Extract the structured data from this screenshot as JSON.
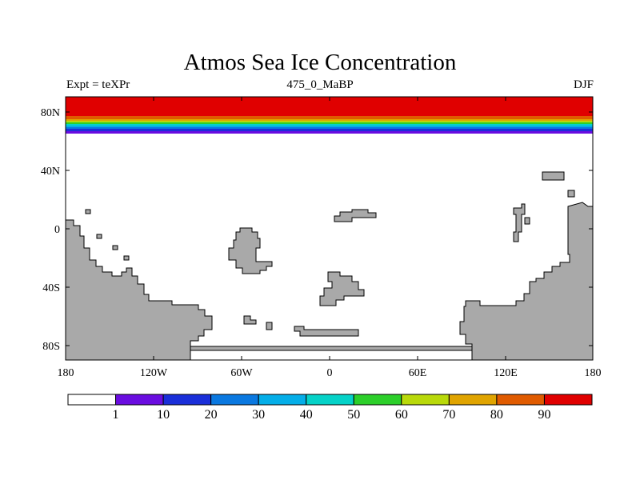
{
  "title": "Atmos Sea Ice Concentration",
  "subtitle_left": "Expt = teXPr",
  "subtitle_center": "475_0_MaBP",
  "subtitle_right": "DJF",
  "map": {
    "lon_range": [
      -180,
      180
    ],
    "lat_range": [
      -90,
      90
    ],
    "x_ticks": [
      "180",
      "120W",
      "60W",
      "0",
      "60E",
      "120E",
      "180"
    ],
    "y_ticks": [
      "80N",
      "40N",
      "0",
      "40S",
      "80S"
    ],
    "land_color": "#a9a9a9",
    "ocean_color": "#ffffff"
  },
  "chart_data": {
    "type": "heatmap",
    "variable": "sea ice concentration",
    "season": "DJF",
    "colorbar": {
      "levels": [
        1,
        10,
        20,
        30,
        40,
        50,
        60,
        70,
        80,
        90
      ],
      "labels": [
        "1",
        "10",
        "20",
        "30",
        "40",
        "50",
        "60",
        "70",
        "80",
        "90"
      ],
      "colors": [
        "#ffffff",
        "#6a0de0",
        "#1a2fd9",
        "#0a78e0",
        "#04aee8",
        "#05d2c8",
        "#2ccf2a",
        "#b9d90a",
        "#e0a400",
        "#e05b00",
        "#e00000"
      ]
    },
    "ice_band_north": [
      {
        "lat_min": 66,
        "lat_max": 68,
        "conc": "1-10"
      },
      {
        "lat_min": 68,
        "lat_max": 69,
        "conc": "10-20"
      },
      {
        "lat_min": 69,
        "lat_max": 70,
        "conc": "20-30"
      },
      {
        "lat_min": 70,
        "lat_max": 71,
        "conc": "30-40"
      },
      {
        "lat_min": 71,
        "lat_max": 72,
        "conc": "40-50"
      },
      {
        "lat_min": 72,
        "lat_max": 73,
        "conc": "50-60"
      },
      {
        "lat_min": 73,
        "lat_max": 74,
        "conc": "60-70"
      },
      {
        "lat_min": 74,
        "lat_max": 75,
        "conc": "70-80"
      },
      {
        "lat_min": 75,
        "lat_max": 77,
        "conc": "80-90"
      },
      {
        "lat_min": 77,
        "lat_max": 90,
        "conc": ">90"
      }
    ]
  }
}
